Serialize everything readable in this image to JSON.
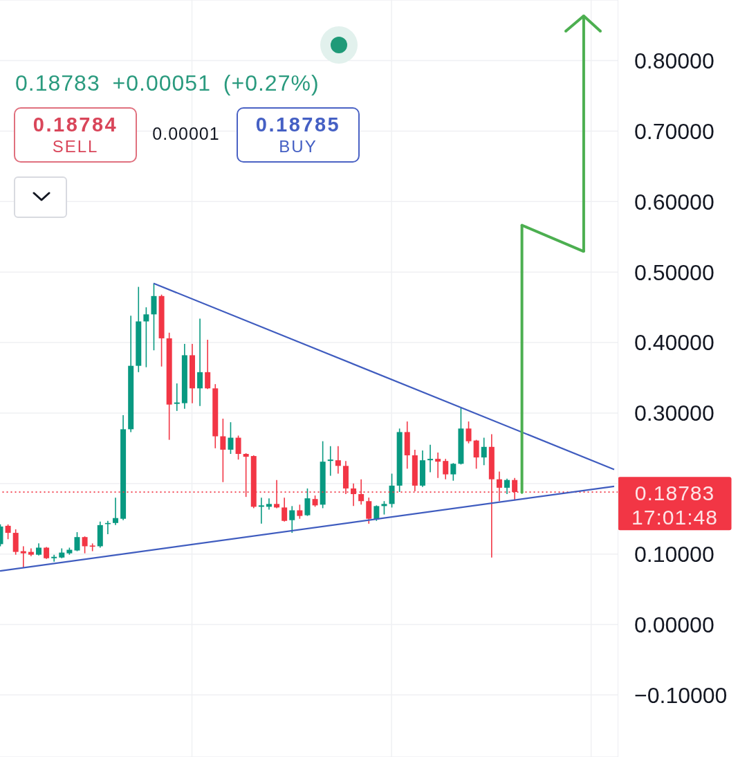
{
  "chart_data": {
    "type": "candlestick",
    "subtitle": "0.18783 +0.00051 (+0.27%)",
    "categories": [
      null,
      null,
      null,
      null,
      null,
      null,
      null,
      null,
      null,
      null,
      null,
      null,
      null,
      null,
      null,
      null,
      null,
      null,
      null,
      null,
      null,
      null,
      null,
      null,
      null,
      null,
      null,
      null,
      null,
      null,
      null,
      null,
      null,
      null,
      null,
      null,
      null,
      null,
      null,
      null,
      null,
      null,
      null,
      null,
      null,
      null,
      null,
      null,
      null,
      null,
      null,
      null,
      null,
      null,
      null,
      null,
      null,
      null,
      null,
      null,
      null,
      null,
      null,
      null,
      null,
      null,
      null,
      null,
      null,
      null,
      null,
      null,
      null,
      null,
      null,
      null,
      null,
      null,
      null,
      null,
      null
    ],
    "ohlc": [
      [
        0.114,
        0.142,
        0.111,
        0.139
      ],
      [
        0.14,
        0.142,
        0.121,
        0.13
      ],
      [
        0.13,
        0.135,
        0.099,
        0.103
      ],
      [
        0.104,
        0.111,
        0.08,
        0.101
      ],
      [
        0.103,
        0.108,
        0.097,
        0.099
      ],
      [
        0.099,
        0.115,
        0.098,
        0.109
      ],
      [
        0.109,
        0.11,
        0.093,
        0.094
      ],
      [
        0.094,
        0.099,
        0.089,
        0.096
      ],
      [
        0.095,
        0.108,
        0.094,
        0.102
      ],
      [
        0.101,
        0.109,
        0.099,
        0.106
      ],
      [
        0.105,
        0.131,
        0.104,
        0.124
      ],
      [
        0.124,
        0.125,
        0.101,
        0.111
      ],
      [
        0.112,
        0.115,
        0.104,
        0.111
      ],
      [
        0.111,
        0.146,
        0.109,
        0.141
      ],
      [
        0.143,
        0.147,
        0.128,
        0.144
      ],
      [
        0.144,
        0.18,
        0.141,
        0.151
      ],
      [
        0.15,
        0.297,
        0.148,
        0.277
      ],
      [
        0.277,
        0.438,
        0.273,
        0.367
      ],
      [
        0.367,
        0.479,
        0.358,
        0.43
      ],
      [
        0.43,
        0.45,
        0.365,
        0.44
      ],
      [
        0.44,
        0.484,
        0.389,
        0.466
      ],
      [
        0.466,
        0.468,
        0.366,
        0.406
      ],
      [
        0.406,
        0.414,
        0.262,
        0.312
      ],
      [
        0.313,
        0.342,
        0.303,
        0.315
      ],
      [
        0.314,
        0.398,
        0.306,
        0.382
      ],
      [
        0.382,
        0.398,
        0.314,
        0.335
      ],
      [
        0.335,
        0.434,
        0.31,
        0.358
      ],
      [
        0.358,
        0.404,
        0.334,
        0.335
      ],
      [
        0.335,
        0.341,
        0.25,
        0.267
      ],
      [
        0.267,
        0.292,
        0.202,
        0.248
      ],
      [
        0.248,
        0.287,
        0.242,
        0.265
      ],
      [
        0.265,
        0.268,
        0.234,
        0.242
      ],
      [
        0.242,
        0.243,
        0.181,
        0.238
      ],
      [
        0.239,
        0.24,
        0.165,
        0.167
      ],
      [
        0.167,
        0.18,
        0.143,
        0.169
      ],
      [
        0.167,
        0.179,
        0.163,
        0.171
      ],
      [
        0.171,
        0.205,
        0.165,
        0.166
      ],
      [
        0.166,
        0.18,
        0.146,
        0.147
      ],
      [
        0.148,
        0.168,
        0.13,
        0.162
      ],
      [
        0.162,
        0.17,
        0.15,
        0.154
      ],
      [
        0.155,
        0.193,
        0.154,
        0.179
      ],
      [
        0.178,
        0.183,
        0.167,
        0.169
      ],
      [
        0.17,
        0.26,
        0.165,
        0.231
      ],
      [
        0.232,
        0.253,
        0.211,
        0.234
      ],
      [
        0.233,
        0.253,
        0.214,
        0.225
      ],
      [
        0.225,
        0.232,
        0.185,
        0.193
      ],
      [
        0.193,
        0.2,
        0.168,
        0.185
      ],
      [
        0.185,
        0.206,
        0.17,
        0.175
      ],
      [
        0.175,
        0.18,
        0.143,
        0.15
      ],
      [
        0.149,
        0.169,
        0.147,
        0.168
      ],
      [
        0.168,
        0.175,
        0.156,
        0.171
      ],
      [
        0.171,
        0.214,
        0.166,
        0.197
      ],
      [
        0.197,
        0.278,
        0.188,
        0.273
      ],
      [
        0.273,
        0.288,
        0.221,
        0.24
      ],
      [
        0.24,
        0.248,
        0.189,
        0.197
      ],
      [
        0.197,
        0.247,
        0.195,
        0.233
      ],
      [
        0.233,
        0.255,
        0.216,
        0.235
      ],
      [
        0.235,
        0.244,
        0.208,
        0.231
      ],
      [
        0.232,
        0.235,
        0.206,
        0.213
      ],
      [
        0.213,
        0.229,
        0.204,
        0.228
      ],
      [
        0.228,
        0.307,
        0.227,
        0.278
      ],
      [
        0.278,
        0.288,
        0.257,
        0.26
      ],
      [
        0.261,
        0.262,
        0.221,
        0.237
      ],
      [
        0.237,
        0.265,
        0.226,
        0.252
      ],
      [
        0.252,
        0.27,
        0.095,
        0.206
      ],
      [
        0.206,
        0.217,
        0.175,
        0.194
      ],
      [
        0.194,
        0.207,
        0.185,
        0.205
      ],
      [
        0.205,
        0.208,
        0.176,
        0.188
      ],
      null,
      null,
      null,
      null,
      null,
      null,
      null,
      null,
      null,
      null,
      null,
      null,
      null
    ],
    "colors": [
      "#089981",
      "#f23645",
      "#f23645",
      "#f23645",
      "#f23645",
      "#089981",
      "#f23645",
      "#089981",
      "#089981",
      "#089981",
      "#089981",
      "#f23645",
      "#f23645",
      "#089981",
      "#089981",
      "#089981",
      "#089981",
      "#089981",
      "#089981",
      "#089981",
      "#089981",
      "#f23645",
      "#f23645",
      "#089981",
      "#089981",
      "#f23645",
      "#089981",
      "#f23645",
      "#f23645",
      "#f23645",
      "#089981",
      "#f23645",
      "#f23645",
      "#f23645",
      "#089981",
      "#089981",
      "#f23645",
      "#f23645",
      "#089981",
      "#f23645",
      "#089981",
      "#f23645",
      "#089981",
      "#089981",
      "#f23645",
      "#f23645",
      "#f23645",
      "#f23645",
      "#f23645",
      "#089981",
      "#089981",
      "#089981",
      "#089981",
      "#f23645",
      "#f23645",
      "#089981",
      "#089981",
      "#f23645",
      "#f23645",
      "#089981",
      "#089981",
      "#f23645",
      "#f23645",
      "#089981",
      "#f23645",
      "#f23645",
      "#089981",
      "#f23645",
      null,
      null,
      null,
      null,
      null,
      null,
      null,
      null,
      null,
      null,
      null,
      null,
      null
    ],
    "series": [
      {
        "type": "line",
        "color": "#3f5cbf",
        "values": [
          null,
          null,
          null,
          null,
          null,
          null,
          null,
          null,
          null,
          null,
          null,
          null,
          null,
          null,
          null,
          null,
          null,
          null,
          null,
          null,
          0.484,
          null,
          null,
          null,
          null,
          null,
          null,
          null,
          null,
          null,
          null,
          null,
          null,
          null,
          null,
          null,
          null,
          null,
          null,
          null,
          null,
          null,
          null,
          null,
          null,
          null,
          null,
          null,
          null,
          null,
          null,
          null,
          null,
          null,
          null,
          null,
          null,
          null,
          null,
          null,
          null,
          null,
          null,
          null,
          null,
          null,
          null,
          null,
          null,
          null,
          null,
          null,
          null,
          null,
          null,
          null,
          null,
          null,
          null,
          null,
          0.22
        ]
      },
      {
        "type": "line",
        "color": "#3f5cbf",
        "values": [
          0.076,
          null,
          null,
          null,
          null,
          null,
          null,
          null,
          null,
          null,
          null,
          null,
          null,
          null,
          null,
          null,
          null,
          null,
          null,
          null,
          null,
          null,
          null,
          null,
          null,
          null,
          null,
          null,
          null,
          null,
          null,
          null,
          null,
          null,
          null,
          null,
          null,
          null,
          null,
          null,
          null,
          null,
          null,
          null,
          null,
          null,
          null,
          null,
          null,
          null,
          null,
          null,
          null,
          null,
          null,
          null,
          null,
          null,
          null,
          null,
          null,
          null,
          null,
          null,
          null,
          null,
          null,
          null,
          null,
          null,
          null,
          null,
          null,
          null,
          null,
          null,
          null,
          null,
          null,
          null,
          0.196
        ]
      }
    ],
    "ylim": [
      -0.188,
      0.886
    ],
    "yticks": [
      {
        "value": -0.1,
        "label": "−0.10000"
      },
      {
        "value": 0,
        "label": "0.00000"
      },
      {
        "value": 0.1,
        "label": "0.10000"
      },
      {
        "value": 0.2,
        "label": null
      },
      {
        "value": 0.3,
        "label": "0.30000"
      },
      {
        "value": 0.4,
        "label": "0.40000"
      },
      {
        "value": 0.5,
        "label": "0.50000"
      },
      {
        "value": 0.6,
        "label": "0.60000"
      },
      {
        "value": 0.7,
        "label": "0.70000"
      },
      {
        "value": 0.8,
        "label": "0.80000"
      }
    ],
    "tick_labels": "y",
    "grid": true,
    "ref_lines": [
      {
        "axis": "y",
        "value": 0.18783,
        "label": "0.18783",
        "color": "#f23645",
        "line_style": "dotted"
      }
    ],
    "annotations": [
      "0.18784",
      "SELL",
      "0.00001",
      "0.18785",
      "BUY",
      "17:01:48"
    ]
  }
}
